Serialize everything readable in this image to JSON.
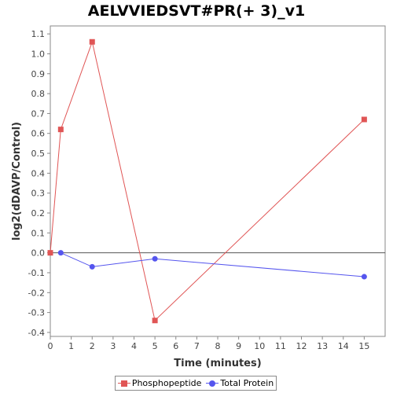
{
  "chart_data": {
    "type": "line",
    "title": "AELVVIEDSVT#PR(+ 3)_v1",
    "xlabel": "Time (minutes)",
    "ylabel": "log2(dDAVP/Control)",
    "xlim": [
      0,
      16
    ],
    "ylim": [
      -0.42,
      1.14
    ],
    "x_ticks": [
      0,
      1,
      2,
      3,
      4,
      5,
      6,
      7,
      8,
      9,
      10,
      11,
      12,
      13,
      14,
      15
    ],
    "y_ticks": [
      -0.4,
      -0.3,
      -0.2,
      -0.1,
      0.0,
      0.1,
      0.2,
      0.3,
      0.4,
      0.5,
      0.6,
      0.7,
      0.8,
      0.9,
      1.0,
      1.1
    ],
    "y_tick_labels": [
      "-0.4",
      "-0.3",
      "-0.2",
      "-0.1",
      "0.0",
      "0.1",
      "0.2",
      "0.3",
      "0.4",
      "0.5",
      "0.6",
      "0.7",
      "0.8",
      "0.9",
      "1.0",
      "1.1"
    ],
    "grid": false,
    "reference_line_y": 0,
    "legend_position": "bottom-center",
    "series": [
      {
        "name": "Phosphopeptide",
        "color": "#e05555",
        "marker": "square",
        "x": [
          0,
          0.5,
          2,
          5,
          15
        ],
        "y": [
          0.0,
          0.62,
          1.06,
          -0.34,
          0.67
        ]
      },
      {
        "name": "Total Protein",
        "color": "#5555ee",
        "marker": "circle",
        "x": [
          0.5,
          2,
          5,
          15
        ],
        "y": [
          0.0,
          -0.07,
          -0.03,
          -0.12
        ]
      }
    ]
  }
}
